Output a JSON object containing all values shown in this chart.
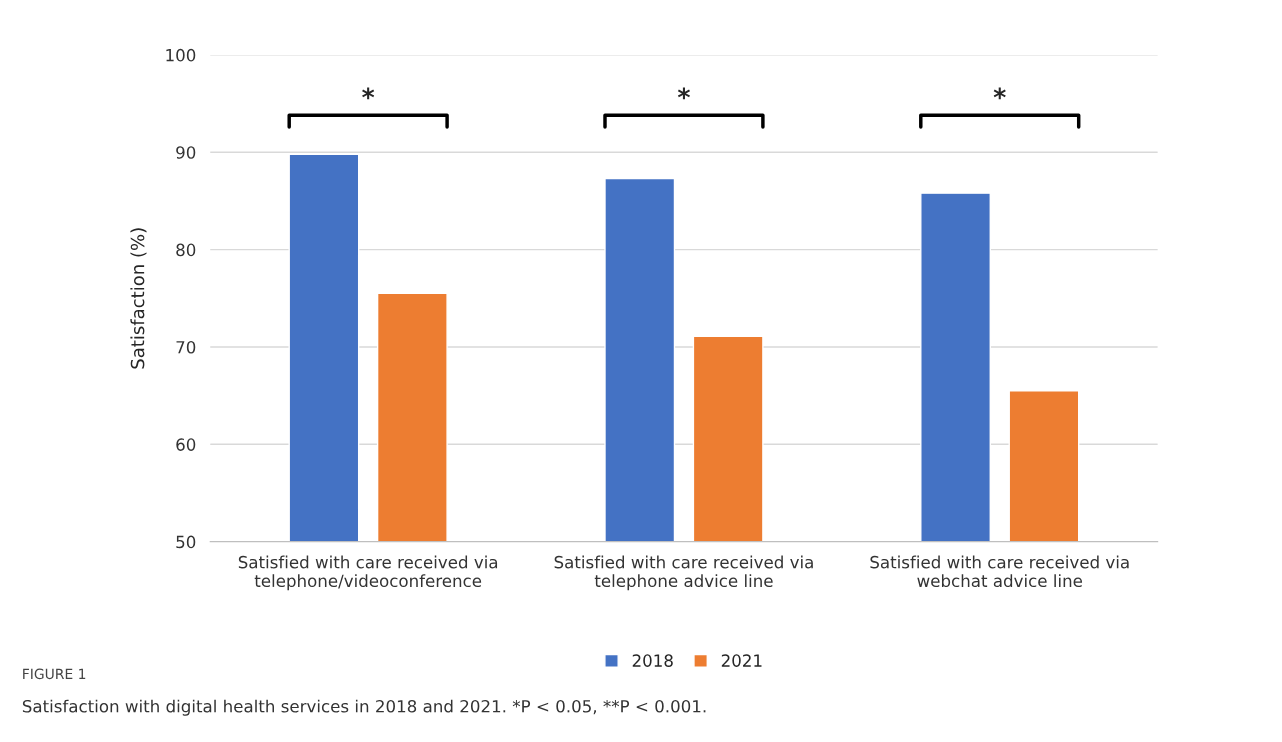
{
  "chart_data": {
    "type": "bar",
    "ylabel": "Satisfaction (%)",
    "categories": [
      "Satisfied with care received via\ntelephone/videoconference",
      "Satisfied with care received via\ntelephone advice line",
      "Satisfied with care received via\nwebchat advice line"
    ],
    "series": [
      {
        "name": "2018",
        "color": "#4472c4",
        "values": [
          89.8,
          87.3,
          85.8
        ]
      },
      {
        "name": "2021",
        "color": "#ed7d31",
        "values": [
          75.5,
          71.1,
          65.5
        ]
      }
    ],
    "ylim": [
      50,
      100
    ],
    "yticks": [
      50,
      60,
      70,
      80,
      90,
      100
    ],
    "grid": "y",
    "legend": "bottom",
    "annotations": [
      "*",
      "*",
      "*",
      "FIGURE 1",
      "Satisfaction with digital health services in 2018 and 2021. *P < 0.05, **P < 0.001."
    ]
  }
}
